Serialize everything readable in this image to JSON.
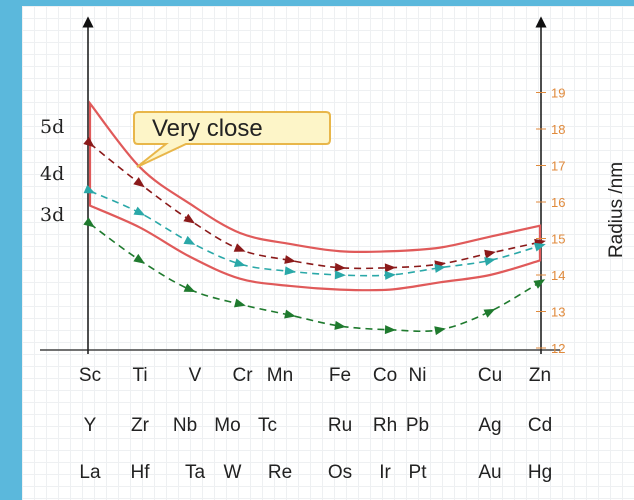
{
  "colors": {
    "background": "#5bb8dc",
    "band": "#e05a5a",
    "series_5d": "#8b1a1a",
    "series_4d": "#2aa8a8",
    "series_3d": "#1f7a2e",
    "right_axis_ticks": "#e08a3c"
  },
  "chart_data": {
    "type": "line",
    "x": [
      "Sc",
      "Ti",
      "V",
      "Cr",
      "Mn",
      "Fe",
      "Co",
      "Ni",
      "Cu",
      "Zn"
    ],
    "element_rows": [
      [
        "Sc",
        "Ti",
        "V",
        "Cr",
        "Mn",
        "Fe",
        "Co",
        "Ni",
        "Cu",
        "Zn"
      ],
      [
        "Y",
        "Zr",
        "Nb",
        "Mo",
        "Tc",
        "Ru",
        "Rh",
        "Pb",
        "Ag",
        "Cd"
      ],
      [
        "La",
        "Hf",
        "Ta",
        "W",
        "Re",
        "Os",
        "Ir",
        "Pt",
        "Au",
        "Hg"
      ]
    ],
    "row_label_positions": [
      [
        0,
        1,
        2.1,
        3.05,
        3.8,
        5,
        5.9,
        6.55,
        8,
        9
      ],
      [
        0,
        1,
        1.9,
        2.75,
        3.55,
        5,
        5.9,
        6.55,
        8,
        9
      ],
      [
        0,
        1,
        2.1,
        2.85,
        3.8,
        5,
        5.9,
        6.55,
        8,
        9
      ]
    ],
    "series": [
      {
        "name": "5d",
        "x": [
          0,
          1,
          2,
          3,
          4,
          5,
          6,
          7,
          8,
          9
        ],
        "values": [
          17.6,
          16.5,
          15.5,
          14.7,
          14.4,
          14.2,
          14.2,
          14.3,
          14.6,
          14.9
        ]
      },
      {
        "name": "4d",
        "x": [
          0,
          1,
          2,
          3,
          4,
          5,
          6,
          7,
          8,
          9
        ],
        "values": [
          16.3,
          15.7,
          14.9,
          14.3,
          14.1,
          14.0,
          14.0,
          14.2,
          14.4,
          14.8
        ]
      },
      {
        "name": "3d",
        "x": [
          0,
          1,
          2,
          3,
          4,
          5,
          6,
          7,
          8,
          9
        ],
        "values": [
          15.4,
          14.4,
          13.6,
          13.2,
          12.9,
          12.6,
          12.5,
          12.5,
          13.0,
          13.8
        ]
      }
    ],
    "shell_labels": [
      "5d",
      "4d",
      "3d"
    ],
    "right_axis_label": "Radius /nm",
    "right_axis_ticks": [
      12,
      13,
      14,
      15,
      16,
      17,
      18,
      19
    ],
    "ylim": [
      12,
      19.9
    ],
    "callout": "Very close"
  }
}
